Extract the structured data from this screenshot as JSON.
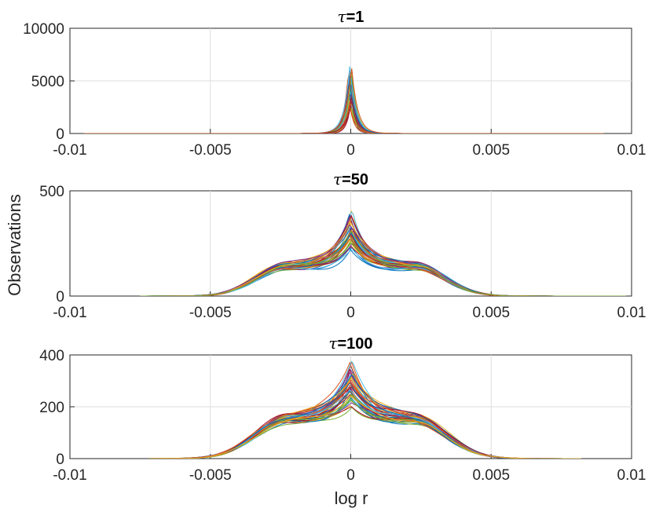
{
  "figure": {
    "ylabel": "Observations",
    "xlabel": "log r"
  },
  "chart_data": [
    {
      "type": "line",
      "title_symbol": "τ",
      "title_value": "=1",
      "xlim": [
        -0.01,
        0.01
      ],
      "ylim": [
        0,
        10000
      ],
      "xticks": [
        -0.01,
        -0.005,
        0,
        0.005,
        0.01
      ],
      "xtick_labels": [
        "-0.01",
        "-0.005",
        "0",
        "0.005",
        "0.01"
      ],
      "yticks": [
        0,
        5000,
        10000
      ],
      "ytick_labels": [
        "0",
        "5000",
        "10000"
      ],
      "grid": true,
      "legend": "none",
      "curve_family": {
        "n_series": 30,
        "center": 0,
        "peak_min": 2500,
        "peak_max": 6800,
        "scale_min": 0.00012,
        "scale_max": 0.00022,
        "support": [
          -0.0095,
          0.009
        ]
      }
    },
    {
      "type": "line",
      "title_symbol": "τ",
      "title_value": "=50",
      "xlim": [
        -0.01,
        0.01
      ],
      "ylim": [
        0,
        500
      ],
      "xticks": [
        -0.01,
        -0.005,
        0,
        0.005,
        0.01
      ],
      "xtick_labels": [
        "-0.01",
        "-0.005",
        "0",
        "0.005",
        "0.01"
      ],
      "yticks": [
        0,
        500
      ],
      "ytick_labels": [
        "0",
        "500"
      ],
      "grid": true,
      "legend": "none",
      "curve_family": {
        "n_series": 40,
        "center": 0,
        "peak_min": 215,
        "peak_max": 420,
        "shoulder_value": 140,
        "shoulder_x": 0.0023,
        "shoulder_width": 0.0019,
        "spike_width_min": 0.0005,
        "spike_width_max": 0.0008,
        "support": [
          -0.0075,
          0.0098
        ]
      }
    },
    {
      "type": "line",
      "title_symbol": "τ",
      "title_value": "=100",
      "xlim": [
        -0.01,
        0.01
      ],
      "ylim": [
        0,
        400
      ],
      "xticks": [
        -0.01,
        -0.005,
        0,
        0.005,
        0.01
      ],
      "xtick_labels": [
        "-0.01",
        "-0.005",
        "0",
        "0.005",
        "0.01"
      ],
      "yticks": [
        0,
        200,
        400
      ],
      "ytick_labels": [
        "0",
        "200",
        "400"
      ],
      "grid": true,
      "legend": "none",
      "curve_family": {
        "n_series": 45,
        "center": 0,
        "peak_min": 185,
        "peak_max": 375,
        "shoulder_value": 150,
        "shoulder_x": 0.0022,
        "shoulder_width": 0.0021,
        "spike_width_min": 0.0006,
        "spike_width_max": 0.001,
        "support": [
          -0.0072,
          0.0082
        ]
      }
    }
  ],
  "palette": [
    "#0072bd",
    "#d95319",
    "#edb120",
    "#7e2f8e",
    "#77ac30",
    "#4dbeee",
    "#a2142f"
  ]
}
